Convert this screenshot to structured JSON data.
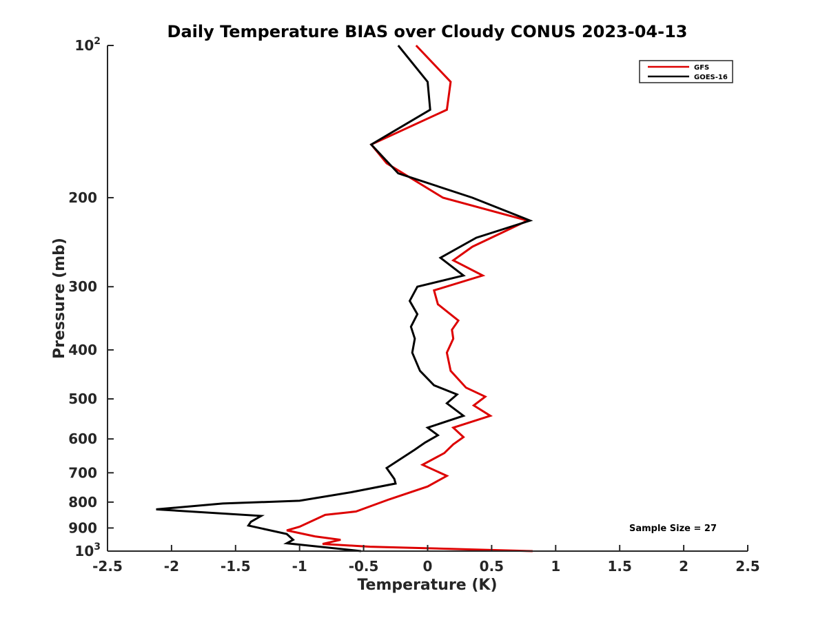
{
  "chart_data": {
    "type": "line",
    "title": "Daily Temperature BIAS over Cloudy CONUS 2023-04-13",
    "xlabel": "Temperature (K)",
    "ylabel": "Pressure (mb)",
    "xlim": [
      -2.5,
      2.5
    ],
    "ylim": [
      100,
      1000
    ],
    "y_scale": "log",
    "y_reversed": true,
    "x_ticks": [
      "-2.5",
      "-2",
      "-1.5",
      "-1",
      "-0.5",
      "0",
      "0.5",
      "1",
      "1.5",
      "2",
      "2.5"
    ],
    "x_tick_values": [
      -2.5,
      -2,
      -1.5,
      -1,
      -0.5,
      0,
      0.5,
      1,
      1.5,
      2,
      2.5
    ],
    "y_ticks": [
      {
        "value": 100,
        "base": "10",
        "exp": "2"
      },
      {
        "value": 200,
        "label": "200"
      },
      {
        "value": 300,
        "label": "300"
      },
      {
        "value": 400,
        "label": "400"
      },
      {
        "value": 500,
        "label": "500"
      },
      {
        "value": 600,
        "label": "600"
      },
      {
        "value": 700,
        "label": "700"
      },
      {
        "value": 800,
        "label": "800"
      },
      {
        "value": 900,
        "label": "900"
      },
      {
        "value": 1000,
        "base": "10",
        "exp": "3"
      }
    ],
    "legend_position": "top-right",
    "annotation": "Sample Size = 27",
    "series": [
      {
        "name": "GFS",
        "color": "#dd0000",
        "points": [
          [
            -0.09,
            100
          ],
          [
            0.18,
            118
          ],
          [
            0.15,
            134
          ],
          [
            -0.44,
            157
          ],
          [
            -0.32,
            171
          ],
          [
            0.12,
            200
          ],
          [
            0.78,
            222
          ],
          [
            0.35,
            250
          ],
          [
            0.2,
            266
          ],
          [
            0.43,
            285
          ],
          [
            0.05,
            305
          ],
          [
            0.08,
            325
          ],
          [
            0.24,
            350
          ],
          [
            0.19,
            365
          ],
          [
            0.2,
            380
          ],
          [
            0.15,
            405
          ],
          [
            0.18,
            440
          ],
          [
            0.3,
            475
          ],
          [
            0.45,
            495
          ],
          [
            0.36,
            515
          ],
          [
            0.49,
            540
          ],
          [
            0.2,
            570
          ],
          [
            0.28,
            595
          ],
          [
            0.2,
            615
          ],
          [
            0.13,
            640
          ],
          [
            -0.04,
            675
          ],
          [
            0.15,
            710
          ],
          [
            0.0,
            745
          ],
          [
            -0.3,
            790
          ],
          [
            -0.56,
            835
          ],
          [
            -0.8,
            848
          ],
          [
            -1.0,
            895
          ],
          [
            -1.1,
            910
          ],
          [
            -0.88,
            935
          ],
          [
            -0.68,
            950
          ],
          [
            -0.82,
            968
          ],
          [
            -0.45,
            980
          ],
          [
            0.82,
            1000
          ]
        ]
      },
      {
        "name": "GOES-16",
        "color": "#000000",
        "points": [
          [
            -0.23,
            100
          ],
          [
            0.0,
            118
          ],
          [
            0.02,
            134
          ],
          [
            -0.44,
            157
          ],
          [
            -0.23,
            179
          ],
          [
            0.35,
            200
          ],
          [
            0.8,
            222
          ],
          [
            0.38,
            240
          ],
          [
            0.1,
            263
          ],
          [
            0.28,
            285
          ],
          [
            -0.08,
            300
          ],
          [
            -0.14,
            320
          ],
          [
            -0.08,
            340
          ],
          [
            -0.13,
            360
          ],
          [
            -0.1,
            380
          ],
          [
            -0.12,
            405
          ],
          [
            -0.06,
            440
          ],
          [
            0.05,
            470
          ],
          [
            0.23,
            490
          ],
          [
            0.15,
            510
          ],
          [
            0.28,
            540
          ],
          [
            0.0,
            570
          ],
          [
            0.08,
            590
          ],
          [
            -0.02,
            610
          ],
          [
            -0.1,
            630
          ],
          [
            -0.32,
            685
          ],
          [
            -0.26,
            720
          ],
          [
            -0.25,
            735
          ],
          [
            -0.6,
            765
          ],
          [
            -1.0,
            795
          ],
          [
            -1.6,
            805
          ],
          [
            -2.12,
            827
          ],
          [
            -1.3,
            852
          ],
          [
            -1.38,
            875
          ],
          [
            -1.4,
            890
          ],
          [
            -1.1,
            925
          ],
          [
            -1.05,
            950
          ],
          [
            -1.1,
            965
          ],
          [
            -0.52,
            1000
          ]
        ]
      }
    ]
  }
}
